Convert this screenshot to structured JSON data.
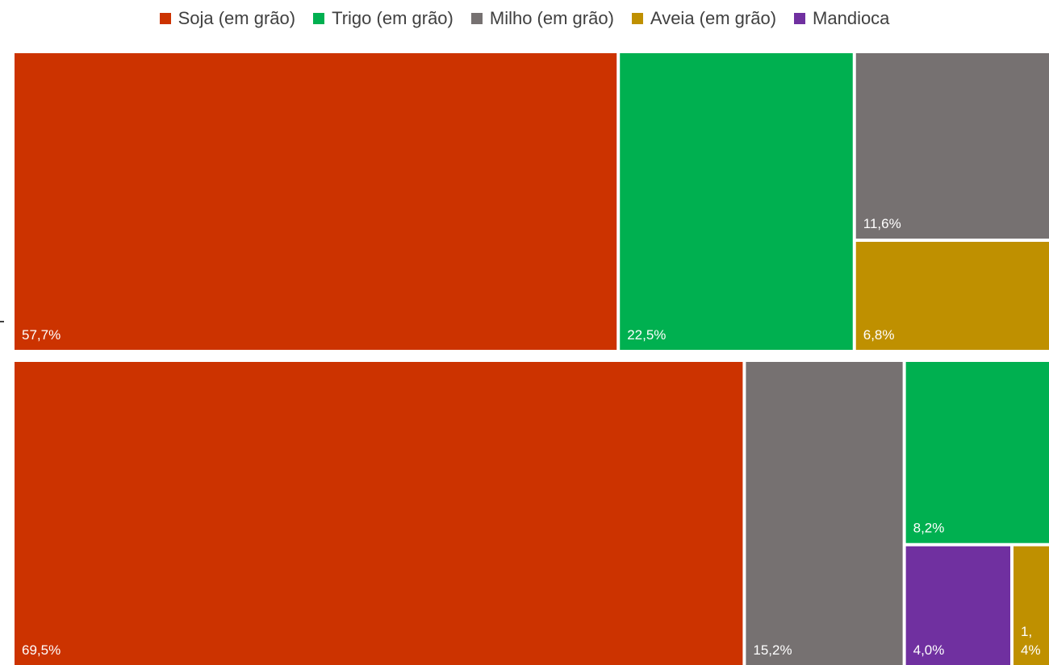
{
  "chart_data": {
    "type": "treemap",
    "legend": {
      "position": "top",
      "items": [
        {
          "name": "Soja (em grão)",
          "color": "#CC3300"
        },
        {
          "name": "Trigo (em grão)",
          "color": "#00B050"
        },
        {
          "name": "Milho (em grão)",
          "color": "#767171"
        },
        {
          "name": "Aveia (em grão)",
          "color": "#BF9000"
        },
        {
          "name": "Mandioca",
          "color": "#7030A0"
        }
      ]
    },
    "groups": [
      {
        "name": "",
        "items": [
          {
            "series": "Soja (em grão)",
            "value": 57.7,
            "label": "57,7%"
          },
          {
            "series": "Trigo (em grão)",
            "value": 22.5,
            "label": "22,5%"
          },
          {
            "series": "Milho (em grão)",
            "value": 11.6,
            "label": "11,6%"
          },
          {
            "series": "Aveia (em grão)",
            "value": 6.8,
            "label": "6,8%"
          }
        ]
      },
      {
        "name": "",
        "items": [
          {
            "series": "Soja (em grão)",
            "value": 69.5,
            "label": "69,5%"
          },
          {
            "series": "Milho (em grão)",
            "value": 15.2,
            "label": "15,2%"
          },
          {
            "series": "Trigo (em grão)",
            "value": 8.2,
            "label": "8,2%"
          },
          {
            "series": "Mandioca",
            "value": 4.0,
            "label": "4,0%"
          },
          {
            "series": "Aveia (em grão)",
            "value": 1.4,
            "label": "1,4%"
          }
        ]
      }
    ]
  }
}
